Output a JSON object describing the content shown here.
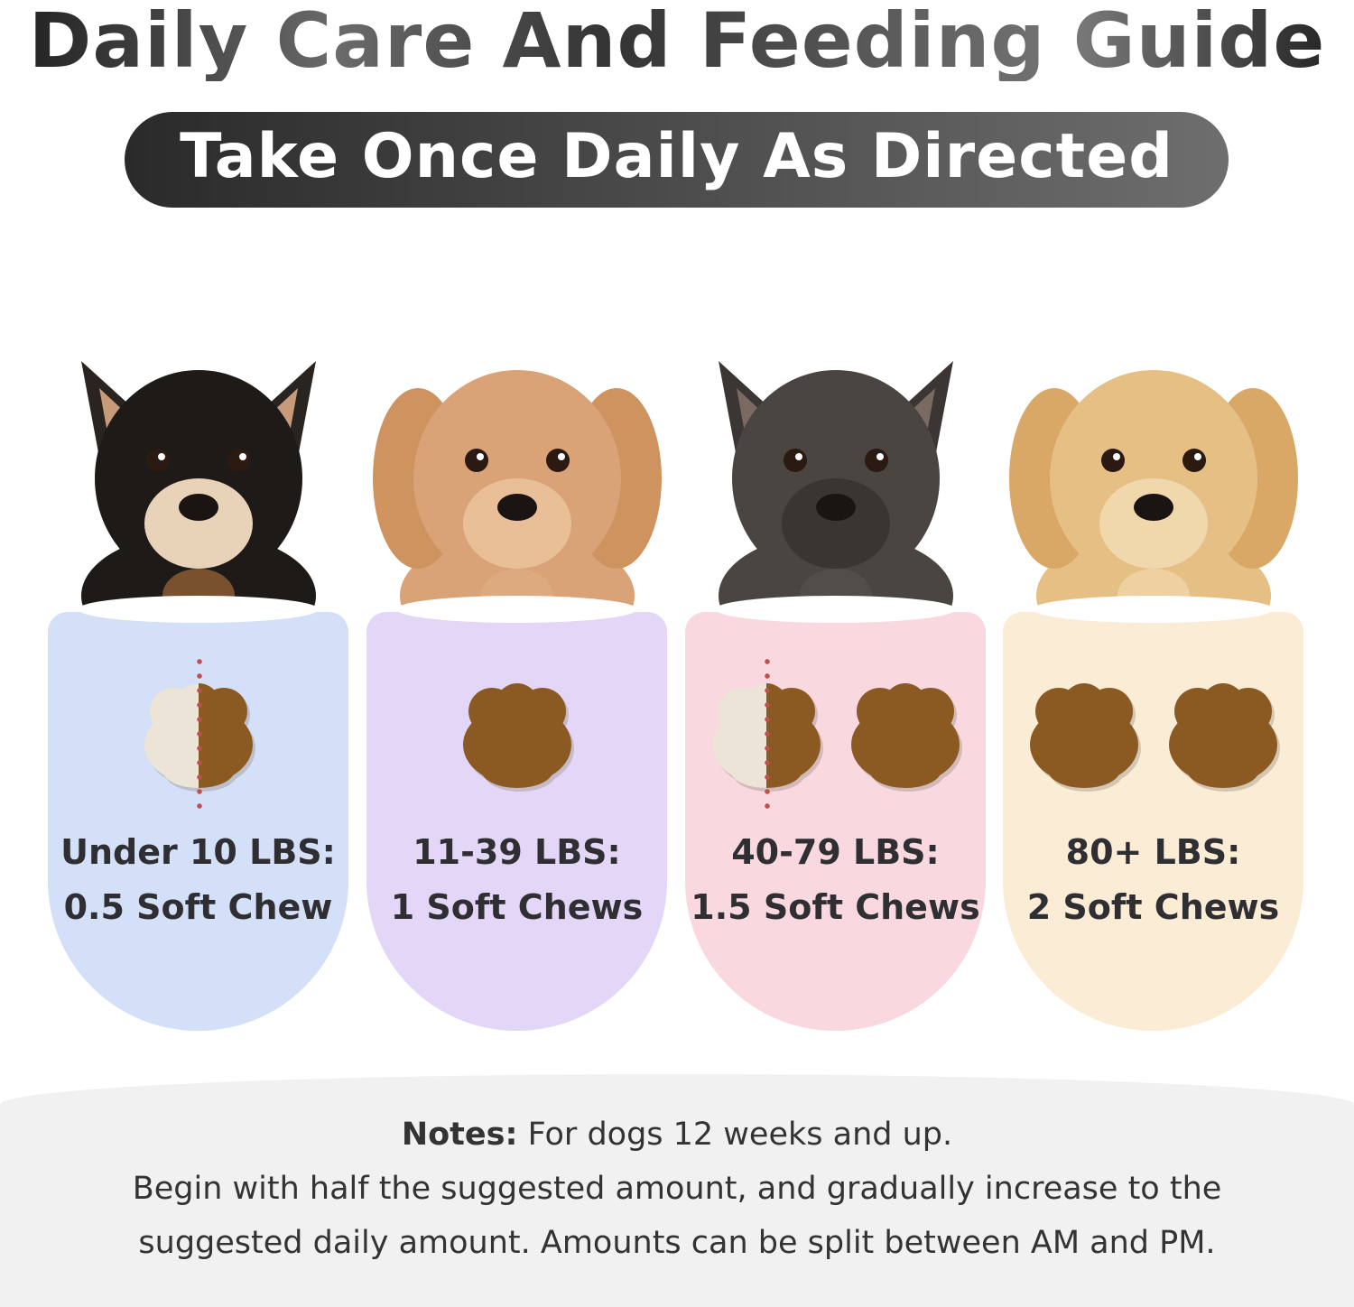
{
  "header": {
    "title": "Daily Care And Feeding Guide",
    "subtitle": "Take Once Daily As Directed"
  },
  "tiers": [
    {
      "dog": "chihuahua",
      "weight": "Under 10 LBS:",
      "dose": "0.5 Soft Chew",
      "chews": 0.5,
      "color": "#d3e0f8"
    },
    {
      "dog": "poodle",
      "weight": "11-39 LBS:",
      "dose": "1 Soft Chews",
      "chews": 1,
      "color": "#e3d6f7"
    },
    {
      "dog": "french-bulldog",
      "weight": "40-79 LBS:",
      "dose": "1.5 Soft Chews",
      "chews": 1.5,
      "color": "#f9d8e0"
    },
    {
      "dog": "golden-retriever",
      "weight": "80+ LBS:",
      "dose": "2 Soft Chews",
      "chews": 2,
      "color": "#fbecd5"
    }
  ],
  "notes": {
    "label": "Notes:",
    "line1": "For dogs 12 weeks and up.",
    "line2": "Begin with half the suggested amount, and gradually increase to the",
    "line3": "suggested daily amount. Amounts can be split between AM and PM."
  }
}
